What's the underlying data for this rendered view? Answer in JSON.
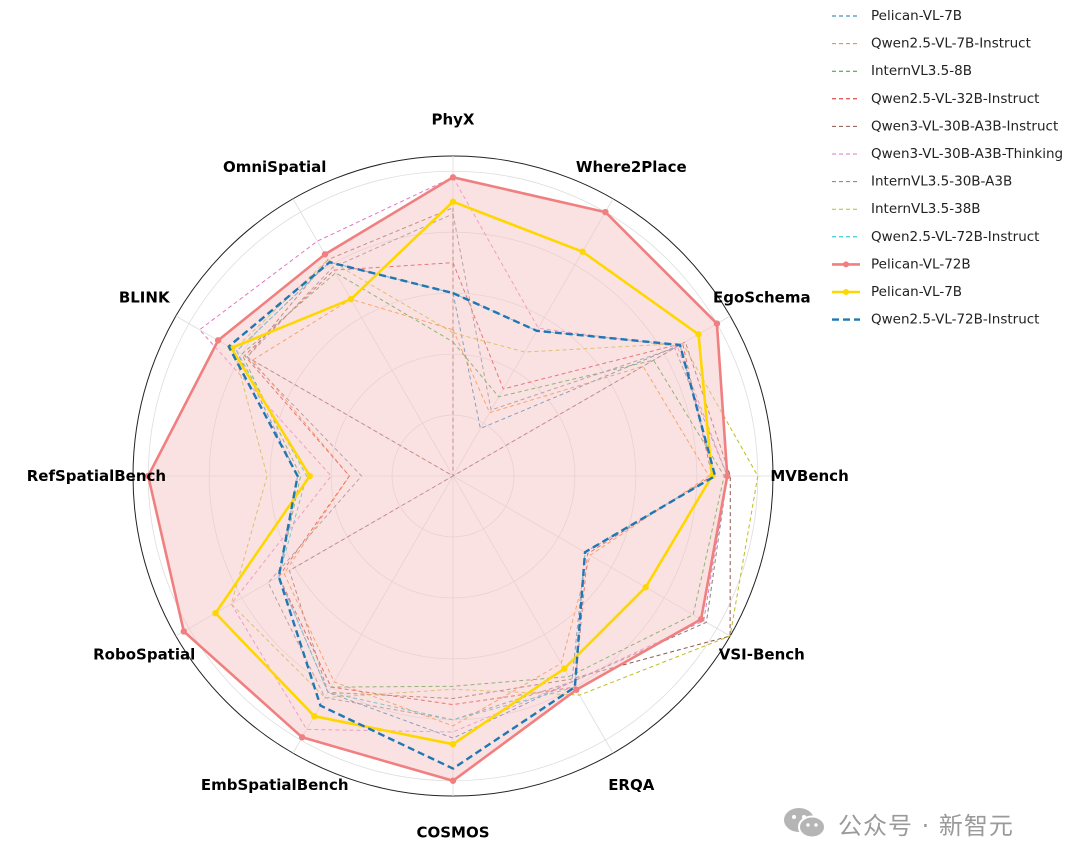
{
  "chart_data": {
    "type": "radar",
    "axes": [
      "PhyX",
      "Where2Place",
      "EgoSchema",
      "MVBench",
      "VSI-Bench",
      "ERQA",
      "COSMOS",
      "EmbSpatialBench",
      "RoboSpatial",
      "RefSpatialBench",
      "BLINK",
      "OmniSpatial"
    ],
    "rlim": [
      0,
      1
    ],
    "grid": true,
    "legend_position": "top-right",
    "series": [
      {
        "name": "Pelican-VL-7B",
        "color": "#1f77b4",
        "style": "dashed-thin",
        "values": [
          0.6,
          0.18,
          0.86,
          0.86,
          0.5,
          0.78,
          0.86,
          0.82,
          0.66,
          0.51,
          0.82,
          0.81
        ]
      },
      {
        "name": "Qwen2.5-VL-7B-Instruct",
        "color": "#ff7f0e",
        "style": "dashed-thin",
        "values": [
          0.48,
          0.24,
          0.72,
          0.84,
          0.52,
          0.71,
          0.82,
          0.78,
          0.64,
          0.34,
          0.76,
          0.67
        ]
      },
      {
        "name": "InternVL3.5-8B",
        "color": "#2ca02c",
        "style": "dashed-thin",
        "values": [
          0.44,
          0.3,
          0.76,
          0.89,
          0.91,
          0.76,
          0.69,
          0.8,
          0.66,
          0.5,
          0.8,
          0.77
        ]
      },
      {
        "name": "Qwen2.5-VL-32B-Instruct",
        "color": "#d62728",
        "style": "dashed-thin",
        "values": [
          0.7,
          0.33,
          0.87,
          0.85,
          0.51,
          0.8,
          0.75,
          0.8,
          0.66,
          0.34,
          0.79,
          0.78
        ]
      },
      {
        "name": "Qwen3-VL-30B-A3B-Instruct",
        "color": "#8c564b",
        "style": "dashed-thin",
        "values": [
          0.88,
          0.0,
          0.88,
          0.91,
          1.05,
          0.77,
          0.73,
          0.82,
          0.62,
          0.0,
          0.78,
          0.82
        ]
      },
      {
        "name": "Qwen3-VL-30B-A3B-Thinking",
        "color": "#e377c2",
        "style": "dashed-thin",
        "values": [
          0.98,
          0.56,
          0.85,
          0.9,
          0.95,
          0.78,
          0.84,
          0.96,
          0.84,
          0.4,
          0.96,
          0.89
        ]
      },
      {
        "name": "InternVL3.5-30B-A3B",
        "color": "#7f7f7f",
        "style": "dashed-thin",
        "values": [
          0.86,
          0.25,
          0.84,
          0.9,
          0.96,
          0.78,
          0.8,
          0.84,
          0.7,
          0.3,
          0.78,
          0.79
        ]
      },
      {
        "name": "InternVL3.5-38B",
        "color": "#bcbd22",
        "style": "dashed-thin",
        "values": [
          0.47,
          0.47,
          0.87,
          1.0,
          1.05,
          0.83,
          0.7,
          0.84,
          0.84,
          0.61,
          0.83,
          0.82
        ]
      },
      {
        "name": "Qwen2.5-VL-72B-Instruct",
        "color": "#17becf",
        "style": "dashed-thin",
        "values": [
          0.6,
          0.55,
          0.86,
          0.86,
          0.5,
          0.8,
          0.8,
          0.82,
          0.66,
          0.48,
          0.82,
          0.81
        ]
      },
      {
        "name": "Pelican-VL-72B",
        "color": "#f08080",
        "style": "solid-bold",
        "markers": true,
        "fill": "#f8c6c6",
        "values": [
          0.98,
          1.0,
          1.0,
          0.9,
          0.94,
          0.81,
          1.0,
          0.99,
          1.02,
          1.0,
          0.89,
          0.84
        ]
      },
      {
        "name": "Pelican-VL-7B",
        "color": "#ffd700",
        "style": "solid-bold",
        "markers": true,
        "values": [
          0.9,
          0.85,
          0.93,
          0.85,
          0.73,
          0.73,
          0.88,
          0.91,
          0.9,
          0.47,
          0.84,
          0.67
        ]
      },
      {
        "name": "Qwen2.5-VL-72B-Instruct",
        "color": "#1f77b4",
        "style": "dashed-bold",
        "values": [
          0.6,
          0.55,
          0.86,
          0.86,
          0.5,
          0.8,
          0.96,
          0.87,
          0.66,
          0.51,
          0.85,
          0.81
        ]
      }
    ]
  },
  "watermark": {
    "text": "公众号 · 新智元",
    "icon": "wechat-icon"
  }
}
